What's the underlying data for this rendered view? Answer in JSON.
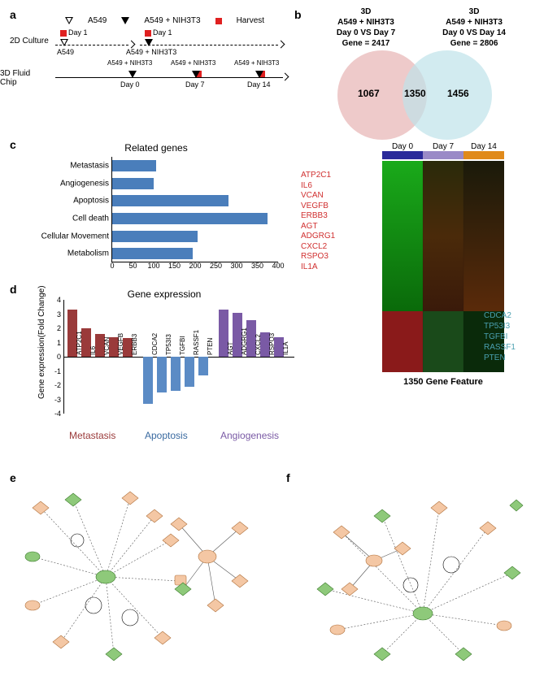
{
  "panel_a": {
    "label": "a",
    "legend": {
      "a549": "A549",
      "a549_nih": "A549 + NIH3T3",
      "harvest": "Harvest"
    },
    "rows": {
      "row1_label": "2D Culture",
      "row2_label": "3D Fluid Chip"
    },
    "marks": {
      "day1_a": "Day 1",
      "day1_b": "Day 1",
      "a549_lab": "A549",
      "a549nih1": "A549 + NIH3T3",
      "a549nih2": "A549 + NIH3T3",
      "a549nih3": "A549 + NIH3T3",
      "day0": "Day 0",
      "day7": "Day 7",
      "day14": "Day 14"
    }
  },
  "panel_b": {
    "label": "b",
    "left_header": {
      "l1": "3D",
      "l2": "A549 + NIH3T3",
      "l3": "Day 0 VS Day 7",
      "l4": "Gene = 2417"
    },
    "right_header": {
      "l1": "3D",
      "l2": "A549 + NIH3T3",
      "l3": "Day 0 VS Day 14",
      "l4": "Gene = 2806"
    },
    "venn": {
      "left_only": "1067",
      "overlap": "1350",
      "right_only": "1456",
      "left_color": "#e7b3b3",
      "right_color": "#bfe3ea"
    },
    "heatmap": {
      "day_labels": [
        "Day 0",
        "Day 7",
        "Day 14"
      ],
      "colbar_colors": [
        "#2a2a9a",
        "#2a2a9a",
        "#2a2a9a",
        "#9a8ac7",
        "#9a8ac7",
        "#9a8ac7",
        "#e08a1a",
        "#e08a1a",
        "#e08a1a"
      ],
      "caption": "1350 Gene Feature",
      "red_genes": [
        "ATP2C1",
        "IL6",
        "VCAN",
        "VEGFB",
        "ERBB3",
        "AGT",
        "ADGRG1",
        "CXCL2",
        "RSPO3",
        "IL1A"
      ],
      "blue_genes": [
        "CDCA2",
        "TP53I3",
        "TGFBI",
        "RASSF1",
        "PTEN"
      ]
    }
  },
  "panel_c": {
    "label": "c",
    "title": "Related genes",
    "xmax": 400,
    "xticks": [
      0,
      50,
      100,
      150,
      200,
      250,
      300,
      350,
      400
    ],
    "bar_color": "#4a7ebb",
    "categories": [
      {
        "name": "Metastasis",
        "value": 105
      },
      {
        "name": "Angiogenesis",
        "value": 100
      },
      {
        "name": "Apoptosis",
        "value": 280
      },
      {
        "name": "Cell death",
        "value": 375
      },
      {
        "name": "Cellular Movement",
        "value": 205
      },
      {
        "name": "Metabolism",
        "value": 195
      }
    ]
  },
  "panel_d": {
    "label": "d",
    "title": "Gene expression",
    "y_label": "Gene expression(Fold Change)",
    "ymin": -4,
    "ymax": 4,
    "ystep": 1,
    "groups": [
      {
        "name": "Metastasis",
        "color": "#9a3a3a",
        "label_color": "#9a3a3a",
        "genes": [
          {
            "g": "ATP2C1",
            "v": 3.3
          },
          {
            "g": "IL6",
            "v": 2.0
          },
          {
            "g": "VCAN",
            "v": 1.6
          },
          {
            "g": "VEGFB",
            "v": 1.4
          },
          {
            "g": "ERBB3",
            "v": 1.3
          }
        ]
      },
      {
        "name": "Apoptosis",
        "color": "#5b8bc5",
        "label_color": "#3a6aa0",
        "genes": [
          {
            "g": "CDCA2",
            "v": -3.3
          },
          {
            "g": "TP53I3",
            "v": -2.5
          },
          {
            "g": "TGFBI",
            "v": -2.4
          },
          {
            "g": "RASSF1",
            "v": -2.1
          },
          {
            "g": "PTEN",
            "v": -1.3
          }
        ]
      },
      {
        "name": "Angiogenesis",
        "color": "#7a5aa5",
        "label_color": "#7a5aa5",
        "genes": [
          {
            "g": "AGT",
            "v": 3.3
          },
          {
            "g": "ADGRG1",
            "v": 3.1
          },
          {
            "g": "CXCL2",
            "v": 2.6
          },
          {
            "g": "RSPO3",
            "v": 1.7
          },
          {
            "g": "IL1A",
            "v": 1.4
          }
        ]
      }
    ]
  },
  "panel_e": {
    "label": "e"
  },
  "panel_f": {
    "label": "f"
  }
}
